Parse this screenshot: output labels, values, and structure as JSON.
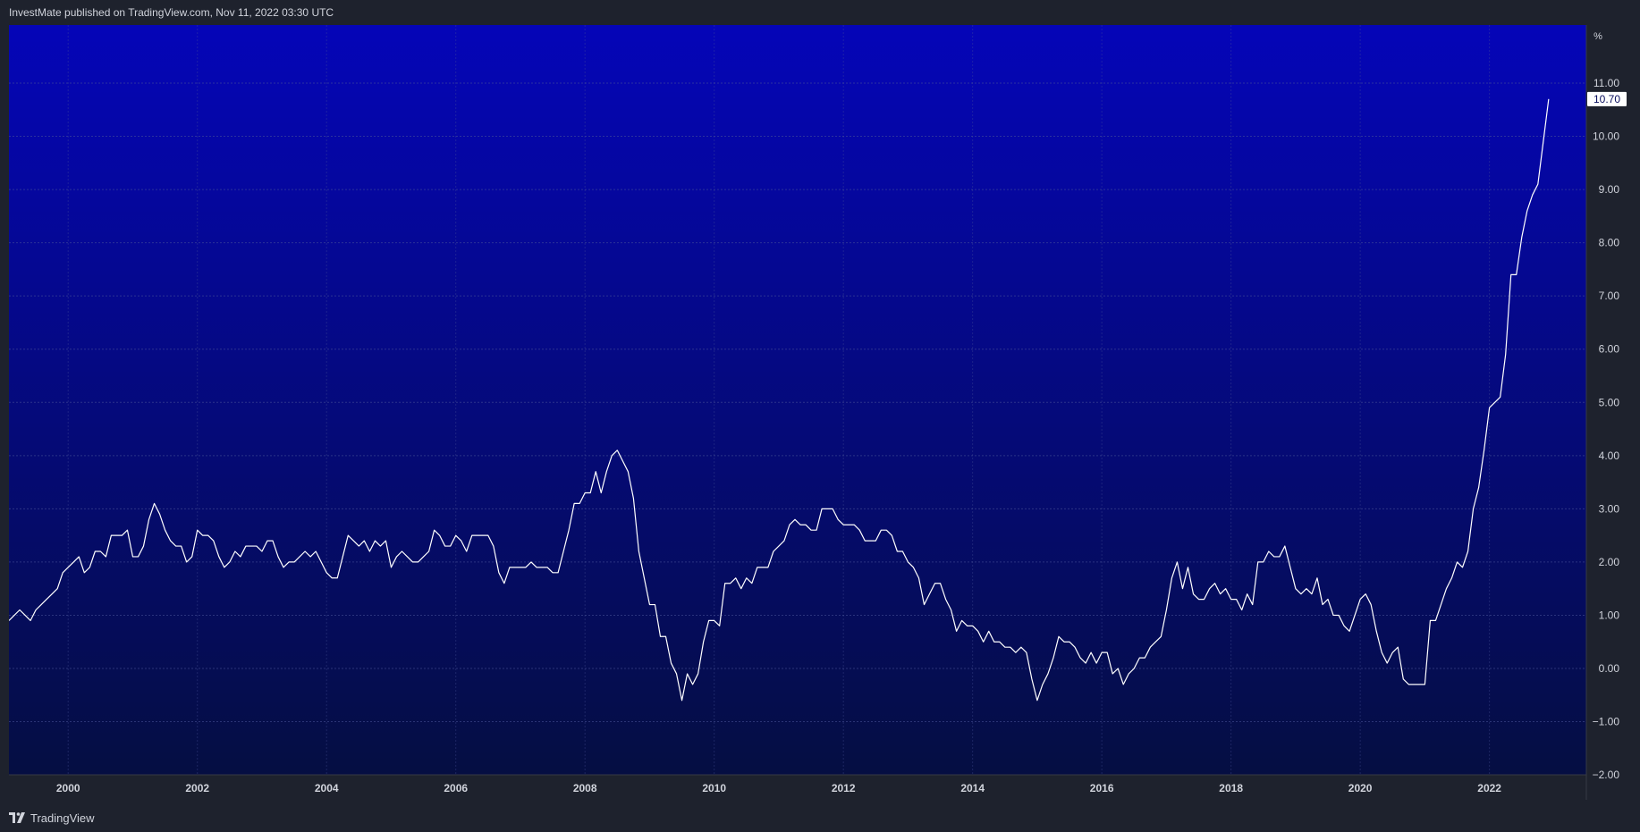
{
  "header": {
    "publisher_text": "InvestMate published on TradingView.com, Nov 11, 2022 03:30 UTC"
  },
  "footer": {
    "brand_label": "TradingView",
    "logo_icon": "tradingview-logo-icon"
  },
  "colors": {
    "page_background": "#1e222d",
    "plot_gradient_top": "#0505b8",
    "plot_gradient_bottom": "#050e42",
    "line": "#ffffff",
    "grid": "#4a5599",
    "text": "#d1d4dc",
    "last_value_badge_bg": "#ffffff"
  },
  "chart_data": {
    "type": "line",
    "title": "",
    "xlabel": "",
    "ylabel": "",
    "y_unit_label": "%",
    "x_is_date": true,
    "xlim": [
      "1999-02",
      "2023-07"
    ],
    "ylim": [
      -2,
      12
    ],
    "y_ticks": [
      -2,
      -1,
      0,
      1,
      2,
      3,
      4,
      5,
      6,
      7,
      8,
      9,
      10,
      11
    ],
    "y_tick_labels": [
      "−2.00",
      "−1.00",
      "0.00",
      "1.00",
      "2.00",
      "3.00",
      "4.00",
      "5.00",
      "6.00",
      "7.00",
      "8.00",
      "9.00",
      "10.00",
      "11.00"
    ],
    "x_ticks": [
      "2000-01",
      "2002-01",
      "2004-01",
      "2006-01",
      "2008-01",
      "2010-01",
      "2012-01",
      "2014-01",
      "2016-01",
      "2018-01",
      "2020-01",
      "2022-01"
    ],
    "x_tick_labels": [
      "2000",
      "2002",
      "2004",
      "2006",
      "2008",
      "2010",
      "2012",
      "2014",
      "2016",
      "2018",
      "2020",
      "2022"
    ],
    "grid": true,
    "last_value_label": "10.70",
    "series": [
      {
        "points": [
          [
            "1999-02",
            0.9
          ],
          [
            "1999-03",
            1.0
          ],
          [
            "1999-04",
            1.1
          ],
          [
            "1999-05",
            1.0
          ],
          [
            "1999-06",
            0.9
          ],
          [
            "1999-07",
            1.1
          ],
          [
            "1999-08",
            1.2
          ],
          [
            "1999-09",
            1.3
          ],
          [
            "1999-10",
            1.4
          ],
          [
            "1999-11",
            1.5
          ],
          [
            "1999-12",
            1.8
          ],
          [
            "2000-01",
            1.9
          ],
          [
            "2000-02",
            2.0
          ],
          [
            "2000-03",
            2.1
          ],
          [
            "2000-04",
            1.8
          ],
          [
            "2000-05",
            1.9
          ],
          [
            "2000-06",
            2.2
          ],
          [
            "2000-07",
            2.2
          ],
          [
            "2000-08",
            2.1
          ],
          [
            "2000-09",
            2.5
          ],
          [
            "2000-10",
            2.5
          ],
          [
            "2000-11",
            2.5
          ],
          [
            "2000-12",
            2.6
          ],
          [
            "2001-01",
            2.1
          ],
          [
            "2001-02",
            2.1
          ],
          [
            "2001-03",
            2.3
          ],
          [
            "2001-04",
            2.8
          ],
          [
            "2001-05",
            3.1
          ],
          [
            "2001-06",
            2.9
          ],
          [
            "2001-07",
            2.6
          ],
          [
            "2001-08",
            2.4
          ],
          [
            "2001-09",
            2.3
          ],
          [
            "2001-10",
            2.3
          ],
          [
            "2001-11",
            2.0
          ],
          [
            "2001-12",
            2.1
          ],
          [
            "2002-01",
            2.6
          ],
          [
            "2002-02",
            2.5
          ],
          [
            "2002-03",
            2.5
          ],
          [
            "2002-04",
            2.4
          ],
          [
            "2002-05",
            2.1
          ],
          [
            "2002-06",
            1.9
          ],
          [
            "2002-07",
            2.0
          ],
          [
            "2002-08",
            2.2
          ],
          [
            "2002-09",
            2.1
          ],
          [
            "2002-10",
            2.3
          ],
          [
            "2002-11",
            2.3
          ],
          [
            "2002-12",
            2.3
          ],
          [
            "2003-01",
            2.2
          ],
          [
            "2003-02",
            2.4
          ],
          [
            "2003-03",
            2.4
          ],
          [
            "2003-04",
            2.1
          ],
          [
            "2003-05",
            1.9
          ],
          [
            "2003-06",
            2.0
          ],
          [
            "2003-07",
            2.0
          ],
          [
            "2003-08",
            2.1
          ],
          [
            "2003-09",
            2.2
          ],
          [
            "2003-10",
            2.1
          ],
          [
            "2003-11",
            2.2
          ],
          [
            "2003-12",
            2.0
          ],
          [
            "2004-01",
            1.8
          ],
          [
            "2004-02",
            1.7
          ],
          [
            "2004-03",
            1.7
          ],
          [
            "2004-04",
            2.1
          ],
          [
            "2004-05",
            2.5
          ],
          [
            "2004-06",
            2.4
          ],
          [
            "2004-07",
            2.3
          ],
          [
            "2004-08",
            2.4
          ],
          [
            "2004-09",
            2.2
          ],
          [
            "2004-10",
            2.4
          ],
          [
            "2004-11",
            2.3
          ],
          [
            "2004-12",
            2.4
          ],
          [
            "2005-01",
            1.9
          ],
          [
            "2005-02",
            2.1
          ],
          [
            "2005-03",
            2.2
          ],
          [
            "2005-04",
            2.1
          ],
          [
            "2005-05",
            2.0
          ],
          [
            "2005-06",
            2.0
          ],
          [
            "2005-07",
            2.1
          ],
          [
            "2005-08",
            2.2
          ],
          [
            "2005-09",
            2.6
          ],
          [
            "2005-10",
            2.5
          ],
          [
            "2005-11",
            2.3
          ],
          [
            "2005-12",
            2.3
          ],
          [
            "2006-01",
            2.5
          ],
          [
            "2006-02",
            2.4
          ],
          [
            "2006-03",
            2.2
          ],
          [
            "2006-04",
            2.5
          ],
          [
            "2006-05",
            2.5
          ],
          [
            "2006-06",
            2.5
          ],
          [
            "2006-07",
            2.5
          ],
          [
            "2006-08",
            2.3
          ],
          [
            "2006-09",
            1.8
          ],
          [
            "2006-10",
            1.6
          ],
          [
            "2006-11",
            1.9
          ],
          [
            "2006-12",
            1.9
          ],
          [
            "2007-01",
            1.9
          ],
          [
            "2007-02",
            1.9
          ],
          [
            "2007-03",
            2.0
          ],
          [
            "2007-04",
            1.9
          ],
          [
            "2007-05",
            1.9
          ],
          [
            "2007-06",
            1.9
          ],
          [
            "2007-07",
            1.8
          ],
          [
            "2007-08",
            1.8
          ],
          [
            "2007-09",
            2.2
          ],
          [
            "2007-10",
            2.6
          ],
          [
            "2007-11",
            3.1
          ],
          [
            "2007-12",
            3.1
          ],
          [
            "2008-01",
            3.3
          ],
          [
            "2008-02",
            3.3
          ],
          [
            "2008-03",
            3.7
          ],
          [
            "2008-04",
            3.3
          ],
          [
            "2008-05",
            3.7
          ],
          [
            "2008-06",
            4.0
          ],
          [
            "2008-07",
            4.1
          ],
          [
            "2008-08",
            3.9
          ],
          [
            "2008-09",
            3.7
          ],
          [
            "2008-10",
            3.2
          ],
          [
            "2008-11",
            2.2
          ],
          [
            "2008-12",
            1.7
          ],
          [
            "2009-01",
            1.2
          ],
          [
            "2009-02",
            1.2
          ],
          [
            "2009-03",
            0.6
          ],
          [
            "2009-04",
            0.6
          ],
          [
            "2009-05",
            0.1
          ],
          [
            "2009-06",
            -0.1
          ],
          [
            "2009-07",
            -0.6
          ],
          [
            "2009-08",
            -0.1
          ],
          [
            "2009-09",
            -0.3
          ],
          [
            "2009-10",
            -0.1
          ],
          [
            "2009-11",
            0.5
          ],
          [
            "2009-12",
            0.9
          ],
          [
            "2010-01",
            0.9
          ],
          [
            "2010-02",
            0.8
          ],
          [
            "2010-03",
            1.6
          ],
          [
            "2010-04",
            1.6
          ],
          [
            "2010-05",
            1.7
          ],
          [
            "2010-06",
            1.5
          ],
          [
            "2010-07",
            1.7
          ],
          [
            "2010-08",
            1.6
          ],
          [
            "2010-09",
            1.9
          ],
          [
            "2010-10",
            1.9
          ],
          [
            "2010-11",
            1.9
          ],
          [
            "2010-12",
            2.2
          ],
          [
            "2011-01",
            2.3
          ],
          [
            "2011-02",
            2.4
          ],
          [
            "2011-03",
            2.7
          ],
          [
            "2011-04",
            2.8
          ],
          [
            "2011-05",
            2.7
          ],
          [
            "2011-06",
            2.7
          ],
          [
            "2011-07",
            2.6
          ],
          [
            "2011-08",
            2.6
          ],
          [
            "2011-09",
            3.0
          ],
          [
            "2011-10",
            3.0
          ],
          [
            "2011-11",
            3.0
          ],
          [
            "2011-12",
            2.8
          ],
          [
            "2012-01",
            2.7
          ],
          [
            "2012-02",
            2.7
          ],
          [
            "2012-03",
            2.7
          ],
          [
            "2012-04",
            2.6
          ],
          [
            "2012-05",
            2.4
          ],
          [
            "2012-06",
            2.4
          ],
          [
            "2012-07",
            2.4
          ],
          [
            "2012-08",
            2.6
          ],
          [
            "2012-09",
            2.6
          ],
          [
            "2012-10",
            2.5
          ],
          [
            "2012-11",
            2.2
          ],
          [
            "2012-12",
            2.2
          ],
          [
            "2013-01",
            2.0
          ],
          [
            "2013-02",
            1.9
          ],
          [
            "2013-03",
            1.7
          ],
          [
            "2013-04",
            1.2
          ],
          [
            "2013-05",
            1.4
          ],
          [
            "2013-06",
            1.6
          ],
          [
            "2013-07",
            1.6
          ],
          [
            "2013-08",
            1.3
          ],
          [
            "2013-09",
            1.1
          ],
          [
            "2013-10",
            0.7
          ],
          [
            "2013-11",
            0.9
          ],
          [
            "2013-12",
            0.8
          ],
          [
            "2014-01",
            0.8
          ],
          [
            "2014-02",
            0.7
          ],
          [
            "2014-03",
            0.5
          ],
          [
            "2014-04",
            0.7
          ],
          [
            "2014-05",
            0.5
          ],
          [
            "2014-06",
            0.5
          ],
          [
            "2014-07",
            0.4
          ],
          [
            "2014-08",
            0.4
          ],
          [
            "2014-09",
            0.3
          ],
          [
            "2014-10",
            0.4
          ],
          [
            "2014-11",
            0.3
          ],
          [
            "2014-12",
            -0.2
          ],
          [
            "2015-01",
            -0.6
          ],
          [
            "2015-02",
            -0.3
          ],
          [
            "2015-03",
            -0.1
          ],
          [
            "2015-04",
            0.2
          ],
          [
            "2015-05",
            0.6
          ],
          [
            "2015-06",
            0.5
          ],
          [
            "2015-07",
            0.5
          ],
          [
            "2015-08",
            0.4
          ],
          [
            "2015-09",
            0.2
          ],
          [
            "2015-10",
            0.1
          ],
          [
            "2015-11",
            0.3
          ],
          [
            "2015-12",
            0.1
          ],
          [
            "2016-01",
            0.3
          ],
          [
            "2016-02",
            0.3
          ],
          [
            "2016-03",
            -0.1
          ],
          [
            "2016-04",
            0.0
          ],
          [
            "2016-05",
            -0.3
          ],
          [
            "2016-06",
            -0.1
          ],
          [
            "2016-07",
            0.0
          ],
          [
            "2016-08",
            0.2
          ],
          [
            "2016-09",
            0.2
          ],
          [
            "2016-10",
            0.4
          ],
          [
            "2016-11",
            0.5
          ],
          [
            "2016-12",
            0.6
          ],
          [
            "2017-01",
            1.1
          ],
          [
            "2017-02",
            1.7
          ],
          [
            "2017-03",
            2.0
          ],
          [
            "2017-04",
            1.5
          ],
          [
            "2017-05",
            1.9
          ],
          [
            "2017-06",
            1.4
          ],
          [
            "2017-07",
            1.3
          ],
          [
            "2017-08",
            1.3
          ],
          [
            "2017-09",
            1.5
          ],
          [
            "2017-10",
            1.6
          ],
          [
            "2017-11",
            1.4
          ],
          [
            "2017-12",
            1.5
          ],
          [
            "2018-01",
            1.3
          ],
          [
            "2018-02",
            1.3
          ],
          [
            "2018-03",
            1.1
          ],
          [
            "2018-04",
            1.4
          ],
          [
            "2018-05",
            1.2
          ],
          [
            "2018-06",
            2.0
          ],
          [
            "2018-07",
            2.0
          ],
          [
            "2018-08",
            2.2
          ],
          [
            "2018-09",
            2.1
          ],
          [
            "2018-10",
            2.1
          ],
          [
            "2018-11",
            2.3
          ],
          [
            "2018-12",
            1.9
          ],
          [
            "2019-01",
            1.5
          ],
          [
            "2019-02",
            1.4
          ],
          [
            "2019-03",
            1.5
          ],
          [
            "2019-04",
            1.4
          ],
          [
            "2019-05",
            1.7
          ],
          [
            "2019-06",
            1.2
          ],
          [
            "2019-07",
            1.3
          ],
          [
            "2019-08",
            1.0
          ],
          [
            "2019-09",
            1.0
          ],
          [
            "2019-10",
            0.8
          ],
          [
            "2019-11",
            0.7
          ],
          [
            "2019-12",
            1.0
          ],
          [
            "2020-01",
            1.3
          ],
          [
            "2020-02",
            1.4
          ],
          [
            "2020-03",
            1.2
          ],
          [
            "2020-04",
            0.7
          ],
          [
            "2020-05",
            0.3
          ],
          [
            "2020-06",
            0.1
          ],
          [
            "2020-07",
            0.3
          ],
          [
            "2020-08",
            0.4
          ],
          [
            "2020-09",
            -0.2
          ],
          [
            "2020-10",
            -0.3
          ],
          [
            "2020-11",
            -0.3
          ],
          [
            "2020-12",
            -0.3
          ],
          [
            "2021-01",
            -0.3
          ],
          [
            "2021-02",
            0.9
          ],
          [
            "2021-03",
            0.9
          ],
          [
            "2021-04",
            1.2
          ],
          [
            "2021-05",
            1.5
          ],
          [
            "2021-06",
            1.7
          ],
          [
            "2021-07",
            2.0
          ],
          [
            "2021-08",
            1.9
          ],
          [
            "2021-09",
            2.2
          ],
          [
            "2021-10",
            3.0
          ],
          [
            "2021-11",
            3.4
          ],
          [
            "2021-12",
            4.1
          ],
          [
            "2022-01",
            4.9
          ],
          [
            "2022-02",
            5.0
          ],
          [
            "2022-03",
            5.1
          ],
          [
            "2022-04",
            5.9
          ],
          [
            "2022-05",
            7.4
          ],
          [
            "2022-06",
            7.4
          ],
          [
            "2022-07",
            8.1
          ],
          [
            "2022-08",
            8.6
          ],
          [
            "2022-09",
            8.9
          ],
          [
            "2022-10",
            9.1
          ],
          [
            "2022-11",
            9.9
          ],
          [
            "2022-12",
            10.7
          ]
        ]
      }
    ]
  }
}
